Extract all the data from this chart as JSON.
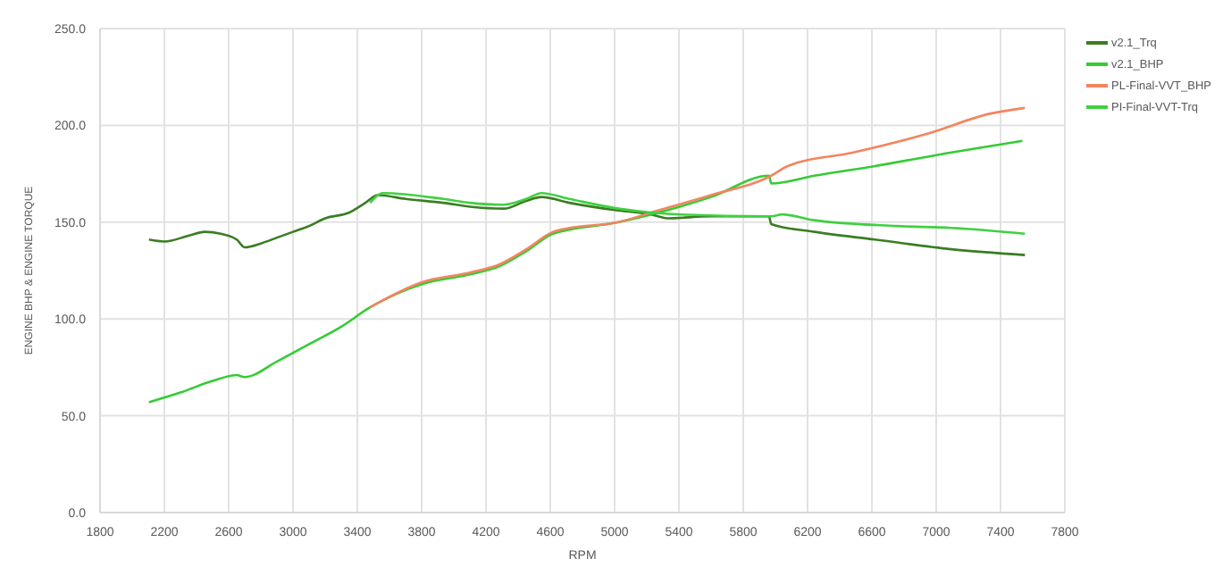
{
  "chart_data": {
    "type": "line",
    "xlabel": "RPM",
    "ylabel": "ENGINE BHP & ENGINE TORQUE",
    "xlim": [
      1800,
      7800
    ],
    "xticks": [
      1800,
      2200,
      2600,
      3000,
      3400,
      3800,
      4200,
      4600,
      5000,
      5400,
      5800,
      6200,
      6600,
      7000,
      7400,
      7800
    ],
    "ylim": [
      0,
      250
    ],
    "yticks": [
      {
        "value": 0,
        "label": "0.0"
      },
      {
        "value": 50,
        "label": "50.0"
      },
      {
        "value": 100,
        "label": "100.0"
      },
      {
        "value": 150,
        "label": "150.0"
      },
      {
        "value": 200,
        "label": "200.0"
      },
      {
        "value": 250,
        "label": "250.0"
      }
    ],
    "grid": true,
    "legend": "top right",
    "marker": "none",
    "line_style": "solid",
    "series": [
      {
        "name": "v2.1_Trq",
        "color": "#3a7d22",
        "x": [
          2104,
          2200,
          2350,
          2450,
          2550,
          2650,
          2699,
          2800,
          2900,
          3000,
          3100,
          3200,
          3350,
          3450,
          3527,
          3700,
          3934,
          4100,
          4311,
          4450,
          4545,
          4718,
          5024,
          5227,
          5329,
          5600,
          5960,
          5974,
          6242,
          6620,
          7094,
          7552
        ],
        "values": [
          141,
          140,
          143,
          145,
          144,
          141,
          137,
          139,
          142,
          145,
          148,
          152,
          155,
          160,
          164,
          162,
          160,
          158,
          157,
          161,
          163,
          160,
          156,
          154,
          152,
          153,
          153,
          149,
          145,
          141,
          136,
          133
        ]
      },
      {
        "name": "v2.1_BHP",
        "color": "#33cc33",
        "x": [
          2104,
          2300,
          2500,
          2650,
          2699,
          2900,
          3100,
          3300,
          3479,
          3802,
          4100,
          4278,
          4450,
          4617,
          5024,
          5227,
          5600,
          5960,
          5974,
          6242,
          6620,
          7094,
          7536
        ],
        "values": [
          57,
          62,
          68,
          71,
          70,
          78,
          87,
          96,
          106,
          118,
          123,
          127,
          135,
          144,
          150,
          154,
          163,
          174,
          170,
          174,
          179,
          186,
          192
        ]
      },
      {
        "name": "PL-Final-VVT_BHP",
        "color": "#f4845f",
        "x": [
          3479,
          3802,
          4100,
          4278,
          4450,
          4617,
          4718,
          5024,
          5227,
          5600,
          5974,
          6076,
          6484,
          6959,
          7333,
          7552
        ],
        "values": [
          106,
          119,
          124,
          128,
          136,
          145,
          147,
          150,
          155,
          164,
          174,
          179,
          186,
          196,
          206,
          209
        ]
      },
      {
        "name": "PI-Final-VVT-Trq",
        "color": "#40d040",
        "x": [
          3479,
          3560,
          3934,
          4100,
          4311,
          4450,
          4545,
          4718,
          5024,
          5227,
          5398,
          5974,
          6042,
          6242,
          6755,
          7094,
          7552
        ],
        "values": [
          160,
          165,
          162,
          160,
          159,
          162,
          165,
          162,
          157,
          155,
          154,
          153,
          154,
          151,
          148,
          147,
          144
        ]
      }
    ]
  }
}
